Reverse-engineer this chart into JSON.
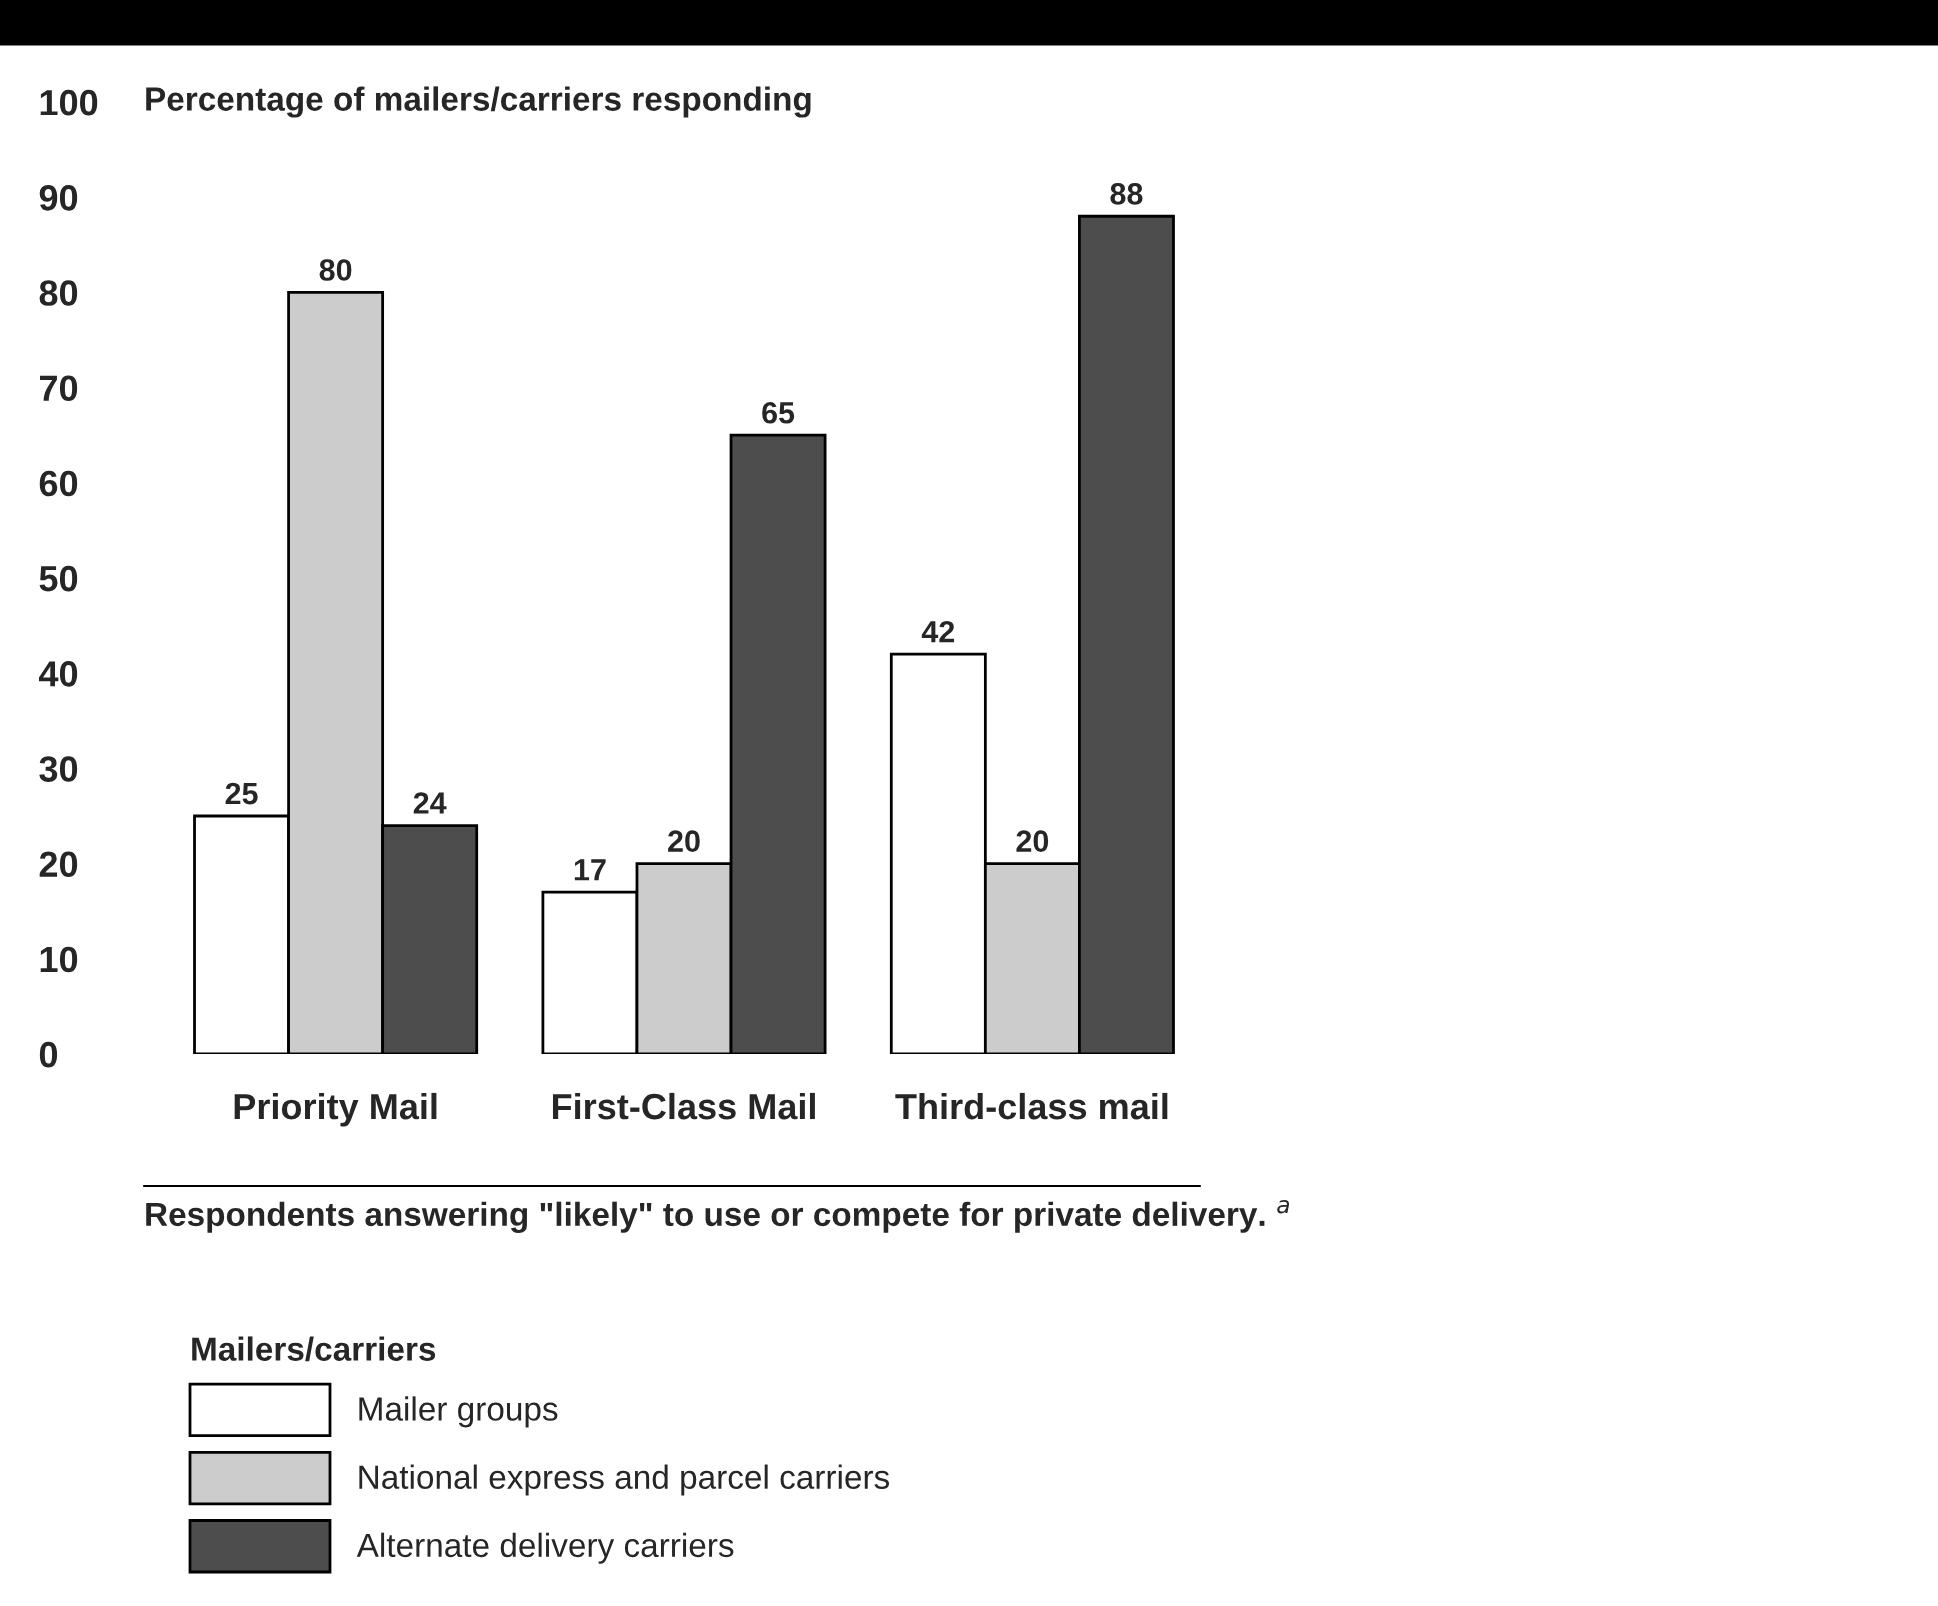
{
  "chart_data": {
    "type": "bar",
    "ylabel": "Percentage of mailers/carriers responding",
    "categories": [
      "Priority Mail",
      "First-Class Mail",
      "Third-class mail"
    ],
    "series": [
      {
        "name": "Mailer groups",
        "color": "#ffffff",
        "values": [
          25,
          17,
          42
        ]
      },
      {
        "name": "National express and parcel carriers",
        "color": "#cccccc",
        "values": [
          80,
          20,
          20
        ]
      },
      {
        "name": "Alternate delivery carriers",
        "color": "#4d4d4d",
        "values": [
          24,
          65,
          88
        ]
      }
    ],
    "ylim": [
      0,
      100
    ],
    "yticks": [
      0,
      10,
      20,
      30,
      40,
      50,
      60,
      70,
      80,
      90,
      100
    ],
    "data_labels": true,
    "grid": false,
    "legend": "bottom left",
    "legend_title": "Mailers/carriers",
    "annotations": [
      "Respondents answering \"likely\" to use or compete for private delivery. $^{a}$"
    ]
  }
}
